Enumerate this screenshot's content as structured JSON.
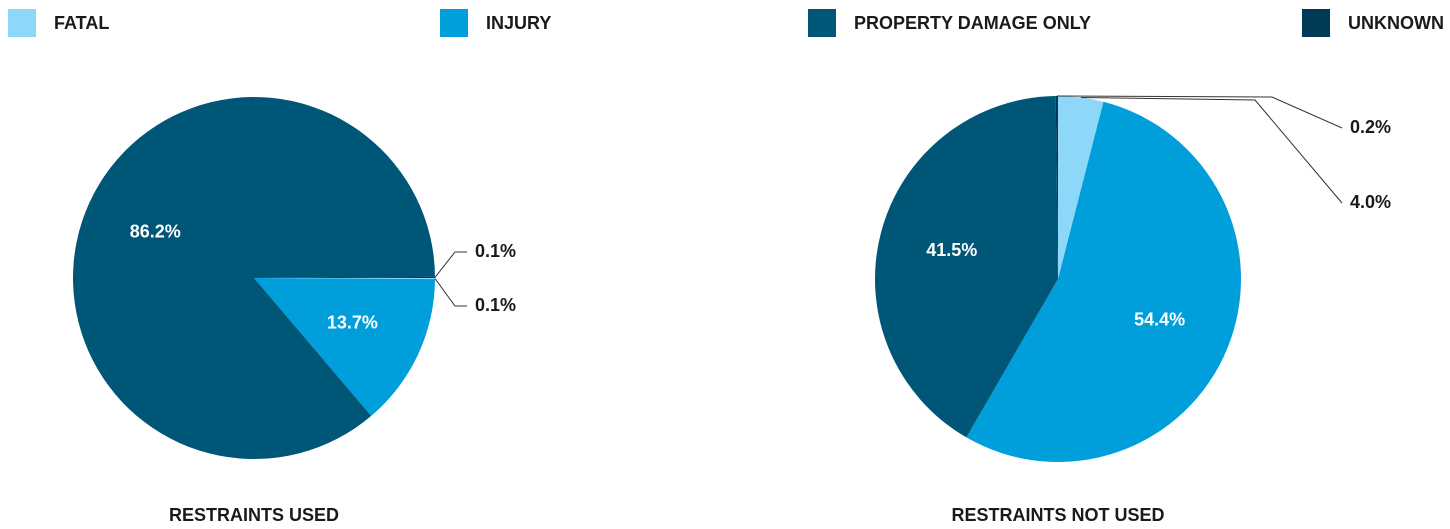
{
  "legend": {
    "categories": [
      "FATAL",
      "INJURY",
      "PROPERTY DAMAGE ONLY",
      "UNKNOWN"
    ],
    "colors": [
      "#8dd8f8",
      "#009fdb",
      "#005677",
      "#003a57"
    ]
  },
  "chart_data": [
    {
      "type": "pie",
      "title": "RESTRAINTS USED",
      "start_angle": 90,
      "values": [
        0.1,
        13.7,
        86.2,
        0.1
      ],
      "value_labels": [
        "0.1%",
        "13.7%",
        "86.2%",
        "0.1%"
      ]
    },
    {
      "type": "pie",
      "title": "RESTRAINTS NOT USED",
      "start_angle": 0,
      "values": [
        4.0,
        54.4,
        41.5,
        0.2
      ],
      "value_labels": [
        "4.0%",
        "54.4%",
        "41.5%",
        "0.2%"
      ]
    }
  ]
}
